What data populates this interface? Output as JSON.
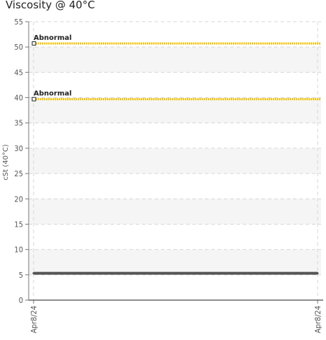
{
  "chart_data": {
    "type": "line",
    "title": "Viscosity @ 40°C",
    "ylabel": "cSt (40°C)",
    "xlabel": "",
    "ylim": [
      0,
      55
    ],
    "yticks": [
      0,
      5,
      10,
      15,
      20,
      25,
      30,
      35,
      40,
      45,
      50,
      55
    ],
    "x_tick_labels": [
      "Apr8/24",
      "Apr8/24"
    ],
    "grid": true,
    "series": [
      {
        "values": [
          5.3,
          5.3
        ],
        "color": "#555555"
      }
    ],
    "thresholds": [
      {
        "label": "Abnormal",
        "value": 50.7,
        "color": "#f2c200"
      },
      {
        "label": "Abnormal",
        "value": 39.7,
        "color": "#f2c200"
      }
    ]
  }
}
